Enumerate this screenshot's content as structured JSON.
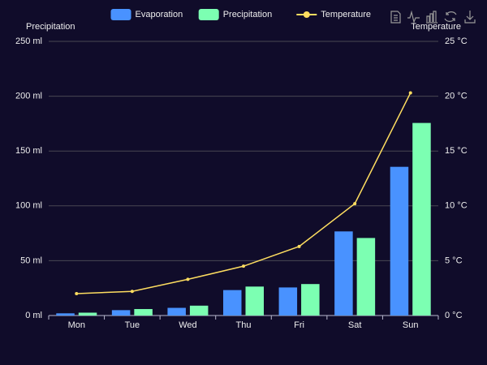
{
  "chart_data": {
    "type": "bar",
    "legend": "top",
    "y_label": "Precipitation",
    "y2_label": "Temperature",
    "categories": [
      "Mon",
      "Tue",
      "Wed",
      "Thu",
      "Fri",
      "Sat",
      "Sun"
    ],
    "series": [
      {
        "name": "Evaporation",
        "type": "bar",
        "color": "#4992ff",
        "values": [
          2.0,
          4.9,
          7.0,
          23.2,
          25.6,
          76.7,
          135.6
        ]
      },
      {
        "name": "Precipitation",
        "type": "bar",
        "color": "#7cffb2",
        "values": [
          2.6,
          5.9,
          9.0,
          26.4,
          28.7,
          70.7,
          175.6
        ]
      },
      {
        "name": "Temperature",
        "type": "line",
        "axis": "y2",
        "color": "#fddd60",
        "values": [
          2.0,
          2.2,
          3.3,
          4.5,
          6.3,
          10.2,
          20.3
        ]
      }
    ],
    "ylim": [
      0,
      250
    ],
    "yticks": [
      {
        "value": 0,
        "label": "0 ml"
      },
      {
        "value": 50,
        "label": "50 ml"
      },
      {
        "value": 100,
        "label": "100 ml"
      },
      {
        "value": 150,
        "label": "150 ml"
      },
      {
        "value": 200,
        "label": "200 ml"
      },
      {
        "value": 250,
        "label": "250 ml"
      }
    ],
    "y2lim": [
      0,
      25
    ],
    "y2ticks": [
      {
        "value": 0,
        "label": "0 °C"
      },
      {
        "value": 5,
        "label": "5 °C"
      },
      {
        "value": 10,
        "label": "10 °C"
      },
      {
        "value": 15,
        "label": "15 °C"
      },
      {
        "value": 20,
        "label": "20 °C"
      },
      {
        "value": 25,
        "label": "25 °C"
      }
    ],
    "grid": true
  }
}
